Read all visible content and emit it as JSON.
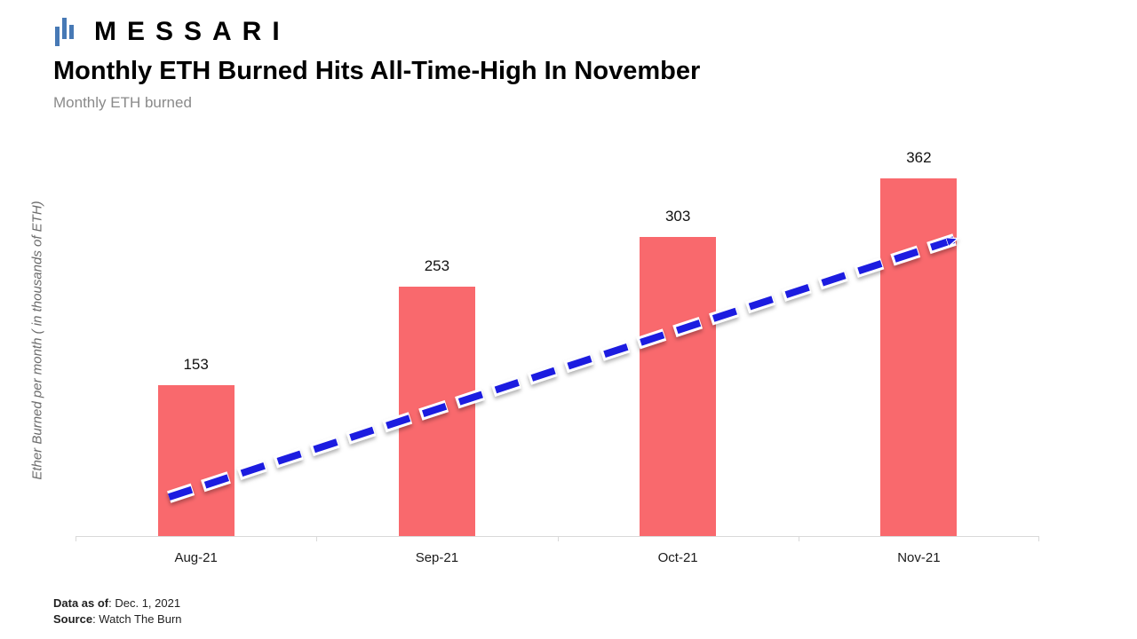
{
  "brand": {
    "logo_text": "MESSARI",
    "logo_color": "#4779B5"
  },
  "header": {
    "title": "Monthly ETH Burned Hits All-Time-High In November",
    "subtitle": "Monthly ETH burned"
  },
  "chart_data": {
    "type": "bar",
    "title": "Monthly ETH Burned Hits All-Time-High In November",
    "categories": [
      "Aug-21",
      "Sep-21",
      "Oct-21",
      "Nov-21"
    ],
    "values": [
      153,
      253,
      303,
      362
    ],
    "xlabel": "",
    "ylabel": "Ether Burned per month ( in thousands of ETH)",
    "ylim": [
      0,
      400
    ],
    "grid": false,
    "legend": "none",
    "bar_color": "#F9696D",
    "axis_color": "#d9d9d9",
    "annotation": {
      "type": "trend-arrow",
      "style": "dashed",
      "color": "#1b1be0",
      "casing_color": "#ffffff",
      "start": {
        "x": 0.097,
        "y": 0.899
      },
      "end": {
        "x": 0.912,
        "y": 0.247
      }
    }
  },
  "footer": {
    "data_as_of_label": "Data as of",
    "data_as_of_value": ": Dec. 1, 2021",
    "source_label": "Source",
    "source_value": ": Watch The Burn"
  }
}
